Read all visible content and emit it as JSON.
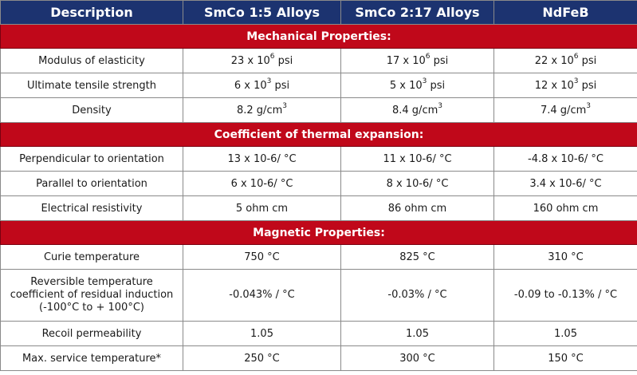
{
  "header": {
    "description": "Description",
    "smco15": "SmCo 1:5 Alloys",
    "smco217": "SmCo 2:17 Alloys",
    "ndfeb": "NdFeB"
  },
  "sections": {
    "mechanical": "Mechanical Properties:",
    "thermal": "Coefficient of thermal expansion:",
    "magnetic": "Magnetic Properties:"
  },
  "rows": {
    "modulus": {
      "label": "Modulus of elasticity",
      "smco15": {
        "base": "23 x 10",
        "exp": "6",
        "unit": " psi"
      },
      "smco217": {
        "base": "17 x 10",
        "exp": "6",
        "unit": " psi"
      },
      "ndfeb": {
        "base": "22 x 10",
        "exp": "6",
        "unit": " psi"
      }
    },
    "tensile": {
      "label": "Ultimate tensile strength",
      "smco15": {
        "base": "6 x 10",
        "exp": "3",
        "unit": " psi"
      },
      "smco217": {
        "base": "5 x 10",
        "exp": "3",
        "unit": " psi"
      },
      "ndfeb": {
        "base": "12 x 10",
        "exp": "3",
        "unit": " psi"
      }
    },
    "density": {
      "label": "Density",
      "smco15": {
        "base": "8.2 g/cm",
        "exp": "3"
      },
      "smco217": {
        "base": "8.4 g/cm",
        "exp": "3"
      },
      "ndfeb": {
        "base": "7.4 g/cm",
        "exp": "3"
      }
    },
    "perpendicular": {
      "label": "Perpendicular to orientation",
      "smco15": "13 x 10-6/ °C",
      "smco217": "11 x 10-6/ °C",
      "ndfeb": "-4.8 x 10-6/ °C"
    },
    "parallel": {
      "label": "Parallel to orientation",
      "smco15": "6 x 10-6/ °C",
      "smco217": "8 x 10-6/ °C",
      "ndfeb": "3.4 x 10-6/ °C"
    },
    "resistivity": {
      "label": "Electrical resistivity",
      "smco15": "5 ohm cm",
      "smco217": "86 ohm cm",
      "ndfeb": "160 ohm cm"
    },
    "curie": {
      "label": "Curie temperature",
      "smco15": "750 °C",
      "smco217": "825 °C",
      "ndfeb": "310 °C"
    },
    "reversible": {
      "label_line1": "Reversible temperature",
      "label_line2": "coefficient of residual induction",
      "label_line3": "(-100°C to + 100°C)",
      "smco15": "-0.043% / °C",
      "smco217": "-0.03% / °C",
      "ndfeb": "-0.09 to -0.13% / °C"
    },
    "recoil": {
      "label": "Recoil permeability",
      "smco15": "1.05",
      "smco217": "1.05",
      "ndfeb": "1.05"
    },
    "max_service": {
      "label": "Max. service temperature*",
      "smco15": "250 °C",
      "smco217": "300 °C",
      "ndfeb": "150 °C"
    }
  }
}
